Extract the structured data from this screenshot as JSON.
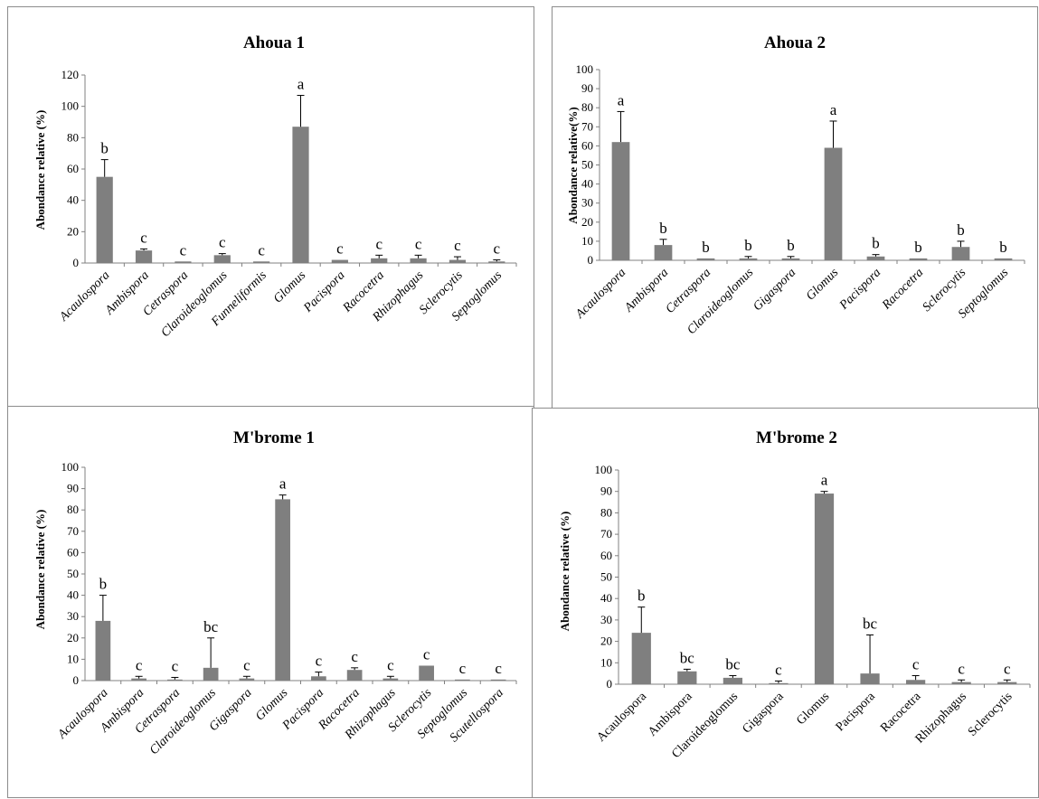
{
  "chart_data": [
    {
      "type": "bar",
      "title": "Ahoua 1",
      "ylabel": "Abondance relative (%)",
      "ylim": [
        0,
        120
      ],
      "ytick_step": 20,
      "yticks": [
        "0",
        "20",
        "40",
        "60",
        "80",
        "100",
        "120"
      ],
      "categories": [
        "Acaulospora",
        "Ambispora",
        "Cetraspora",
        "Claroideoglomus",
        "Funneliformis",
        "Glomus",
        "Pacispora",
        "Racocetra",
        "Rhizophagus",
        "Sclerocytis",
        "Septoglomus"
      ],
      "values": [
        55,
        8,
        1,
        5,
        1,
        87,
        2,
        3,
        3,
        2,
        1
      ],
      "errors": [
        11,
        1,
        0,
        1,
        0,
        20,
        0,
        2,
        2,
        2,
        1
      ],
      "letters": [
        "b",
        "c",
        "c",
        "c",
        "c",
        "a",
        "c",
        "c",
        "c",
        "c",
        "c"
      ],
      "italic_labels": true,
      "bar_color": "#7f7f7f",
      "grid": false
    },
    {
      "type": "bar",
      "title": "Ahoua 2",
      "ylabel": "Abondance relative(%)",
      "ylim": [
        0,
        100
      ],
      "ytick_step": 10,
      "yticks": [
        "0",
        "10",
        "20",
        "30",
        "40",
        "50",
        "60",
        "70",
        "80",
        "90",
        "100"
      ],
      "categories": [
        "Acaulospora",
        "Ambispora",
        "Cetraspora",
        "Claroideoglomus",
        "Gigaspora",
        "Glomus",
        "Pacispora",
        "Racocetra",
        "Sclerocytis",
        "Septoglomus"
      ],
      "values": [
        62,
        8,
        1,
        1,
        1,
        59,
        2,
        1,
        7,
        1
      ],
      "errors": [
        16,
        3,
        0,
        1,
        1,
        14,
        1,
        0,
        3,
        0
      ],
      "letters": [
        "a",
        "b",
        "b",
        "b",
        "b",
        "a",
        "b",
        "b",
        "b",
        "b"
      ],
      "italic_labels": true,
      "bar_color": "#7f7f7f",
      "grid": false
    },
    {
      "type": "bar",
      "title": "M'brome 1",
      "ylabel": "Abondance relative (%)",
      "ylim": [
        0,
        100
      ],
      "ytick_step": 10,
      "yticks": [
        "0",
        "10",
        "20",
        "30",
        "40",
        "50",
        "60",
        "70",
        "80",
        "90",
        "100"
      ],
      "categories": [
        "Acaulospora",
        "Ambispora",
        "Cetraspora",
        "Claroideoglomus",
        "Gigaspora",
        "Glomus",
        "Pacispora",
        "Racocetra",
        "Rhizophagus",
        "Sclerocytis",
        "Septoglomus",
        "Scutellospora"
      ],
      "values": [
        28,
        1,
        0.5,
        6,
        1,
        85,
        2,
        5,
        1,
        7,
        0.5,
        0.5
      ],
      "errors": [
        12,
        1,
        1,
        14,
        1,
        2,
        2,
        1,
        1,
        0,
        0,
        0
      ],
      "letters": [
        "b",
        "c",
        "c",
        "bc",
        "c",
        "a",
        "c",
        "c",
        "c",
        "c",
        "c",
        "c"
      ],
      "italic_labels": true,
      "bar_color": "#7f7f7f",
      "grid": false
    },
    {
      "type": "bar",
      "title": "M'brome 2",
      "ylabel": "Abondance relative (%)",
      "ylim": [
        0,
        100
      ],
      "ytick_step": 10,
      "yticks": [
        "0",
        "10",
        "20",
        "30",
        "40",
        "50",
        "60",
        "70",
        "80",
        "90",
        "100"
      ],
      "categories": [
        "Acaulospora",
        "Ambispora",
        "Claroideoglomus",
        "Gigaspora",
        "Glomus",
        "Pacispora",
        "Racocetra",
        "Rhizophagus",
        "Sclerocytis"
      ],
      "values": [
        24,
        6,
        3,
        0.5,
        89,
        5,
        2,
        1,
        1
      ],
      "errors": [
        12,
        1,
        1,
        1,
        1,
        18,
        2,
        1,
        1
      ],
      "letters": [
        "b",
        "bc",
        "bc",
        "c",
        "a",
        "bc",
        "c",
        "c",
        "c"
      ],
      "italic_labels": false,
      "bar_color": "#7f7f7f",
      "grid": false
    }
  ]
}
